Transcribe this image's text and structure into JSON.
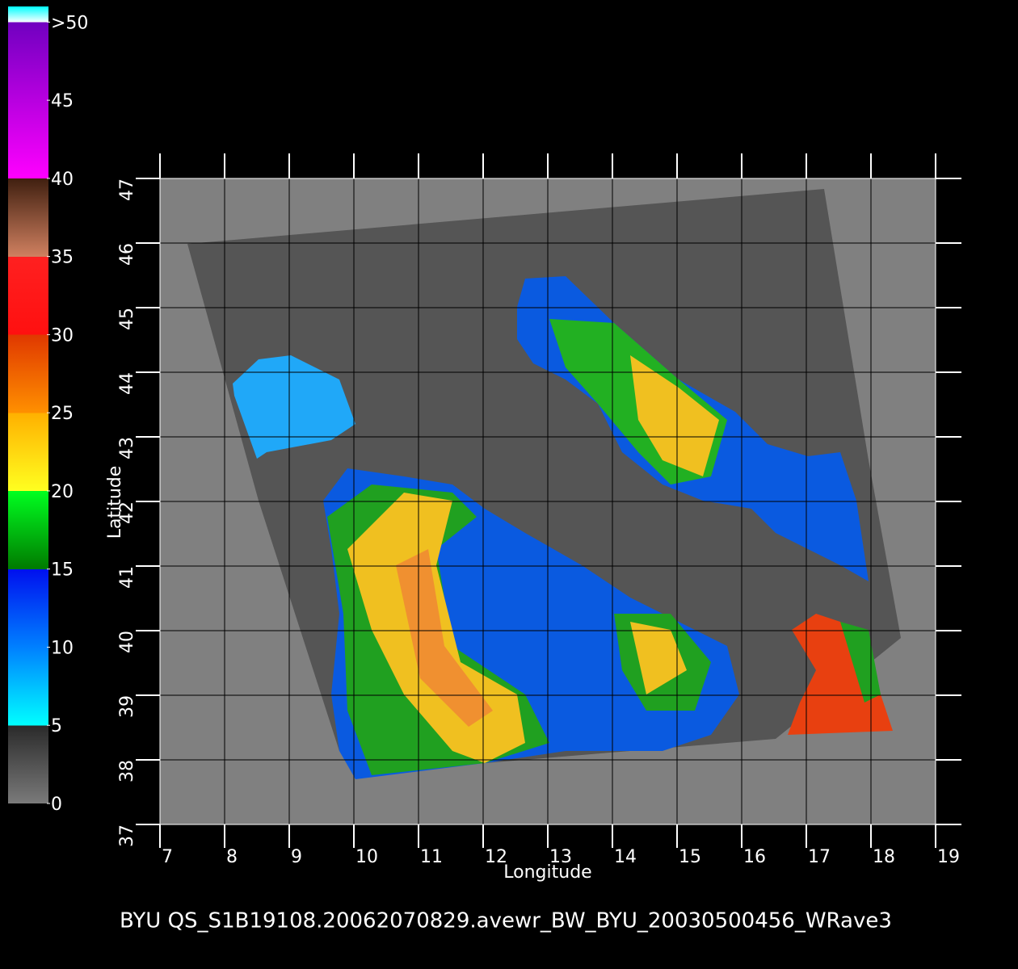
{
  "plot": {
    "xlabel": "Longitude",
    "ylabel": "Latitude",
    "xlim": [
      7,
      19
    ],
    "ylim": [
      37,
      47
    ],
    "xticks": [
      7,
      8,
      9,
      10,
      11,
      12,
      13,
      14,
      15,
      16,
      17,
      18,
      19
    ],
    "yticks": [
      37,
      38,
      39,
      40,
      41,
      42,
      43,
      44,
      45,
      46,
      47
    ],
    "caption": "BYU  QS_S1B19108.20062070829.avewr_BW_BYU_20030500456_WRave3"
  },
  "colorbar": {
    "clim": [
      0,
      51
    ],
    "ticks": [
      0,
      5,
      10,
      15,
      20,
      25,
      30,
      35,
      40,
      45,
      {
        "value": 50,
        "label": ">50"
      }
    ]
  }
}
